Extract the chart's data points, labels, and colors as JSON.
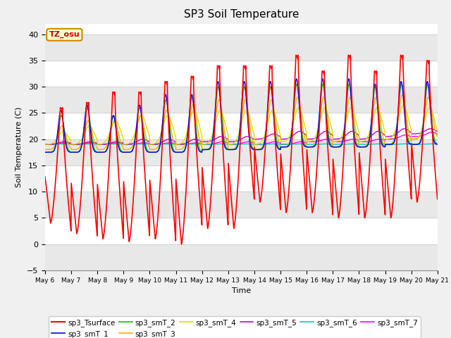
{
  "title": "SP3 Soil Temperature",
  "xlabel": "Time",
  "ylabel": "Soil Temperature (C)",
  "ylim": [
    -5,
    42
  ],
  "background_color": "#ffffff",
  "plot_bg_color": "#ffffff",
  "tz_label": "TZ_osu",
  "xtick_labels": [
    "May 6",
    "May 7",
    "May 8",
    "May 9",
    "May 10",
    "May 11",
    "May 12",
    "May 13",
    "May 14",
    "May 15",
    "May 16",
    "May 17",
    "May 18",
    "May 19",
    "May 20",
    "May 21"
  ],
  "series_colors": {
    "sp3_Tsurface": "#ff0000",
    "sp3_smT_1": "#0000ff",
    "sp3_smT_2": "#00cc00",
    "sp3_smT_3": "#ffaa00",
    "sp3_smT_4": "#dddd00",
    "sp3_smT_5": "#cc00cc",
    "sp3_smT_6": "#00cccc",
    "sp3_smT_7": "#ff00ff"
  },
  "n_days": 15,
  "pts_per_day": 96,
  "surface_night_min": [
    4,
    2,
    1,
    0.5,
    1,
    0,
    3,
    3,
    8,
    6,
    6,
    5,
    5,
    5,
    8
  ],
  "surface_day_peak": [
    26,
    27,
    29,
    29,
    31,
    32,
    34,
    34,
    34,
    36,
    33,
    36,
    33,
    36,
    35
  ],
  "smT1_base": [
    17.5,
    17.5,
    17.5,
    17.5,
    17.5,
    17.5,
    18.0,
    18.0,
    18.0,
    18.5,
    18.5,
    18.5,
    18.5,
    19.0,
    19.0
  ],
  "smT1_amp": [
    8.0,
    9.0,
    7.0,
    9.0,
    11.0,
    11.0,
    13.0,
    13.0,
    13.0,
    13.0,
    13.0,
    13.0,
    12.0,
    12.0,
    12.0
  ],
  "smT2_base": [
    17.5,
    17.5,
    17.5,
    17.5,
    17.5,
    17.5,
    18.0,
    18.0,
    18.0,
    18.5,
    18.5,
    18.5,
    18.5,
    19.0,
    19.0
  ],
  "smT2_amp": [
    7.0,
    8.5,
    7.0,
    8.5,
    10.0,
    10.5,
    12.0,
    12.0,
    12.0,
    12.0,
    12.0,
    12.0,
    11.5,
    11.5,
    11.5
  ],
  "smT3_base": [
    18.0,
    18.0,
    18.0,
    18.0,
    18.0,
    18.0,
    18.0,
    18.0,
    18.0,
    18.5,
    18.5,
    18.5,
    18.5,
    19.0,
    20.0
  ],
  "smT3_amp": [
    4.5,
    5.5,
    5.5,
    6.5,
    7.5,
    8.5,
    9.5,
    9.5,
    9.5,
    9.5,
    9.5,
    9.5,
    9.5,
    9.5,
    8.0
  ],
  "smT4_base": [
    19.0,
    19.0,
    19.0,
    19.0,
    19.0,
    19.0,
    19.0,
    19.0,
    19.0,
    19.5,
    19.5,
    19.5,
    19.5,
    20.0,
    20.0
  ],
  "smT4_amp": [
    2.5,
    3.5,
    4.5,
    5.5,
    5.5,
    6.5,
    6.5,
    6.5,
    6.5,
    6.5,
    6.5,
    6.5,
    6.5,
    6.5,
    6.0
  ],
  "smT5_base": [
    19.0,
    19.0,
    19.0,
    19.0,
    19.0,
    19.0,
    19.5,
    19.5,
    20.0,
    20.0,
    20.0,
    20.0,
    20.0,
    20.5,
    21.0
  ],
  "smT5_amp": [
    0.5,
    0.5,
    0.5,
    1.0,
    1.0,
    1.0,
    1.0,
    1.0,
    1.0,
    1.5,
    1.5,
    1.5,
    1.5,
    1.5,
    1.0
  ],
  "smT6_base": [
    19.0,
    19.0,
    19.0,
    19.0,
    19.0,
    19.0,
    19.0,
    19.0,
    19.0,
    19.0,
    19.0,
    19.0,
    19.0,
    19.0,
    19.0
  ],
  "smT6_amp": [
    0.1,
    0.1,
    0.1,
    0.1,
    0.1,
    0.1,
    0.1,
    0.1,
    0.1,
    0.1,
    0.1,
    0.1,
    0.1,
    0.1,
    0.1
  ],
  "smT7_base": [
    19.0,
    19.0,
    19.0,
    19.0,
    19.0,
    19.0,
    19.0,
    19.0,
    19.0,
    19.0,
    19.5,
    19.5,
    19.5,
    20.0,
    20.5
  ],
  "smT7_amp": [
    0.3,
    0.3,
    0.3,
    0.3,
    0.3,
    0.3,
    0.5,
    0.5,
    0.5,
    0.5,
    0.5,
    0.5,
    0.5,
    0.8,
    0.8
  ]
}
